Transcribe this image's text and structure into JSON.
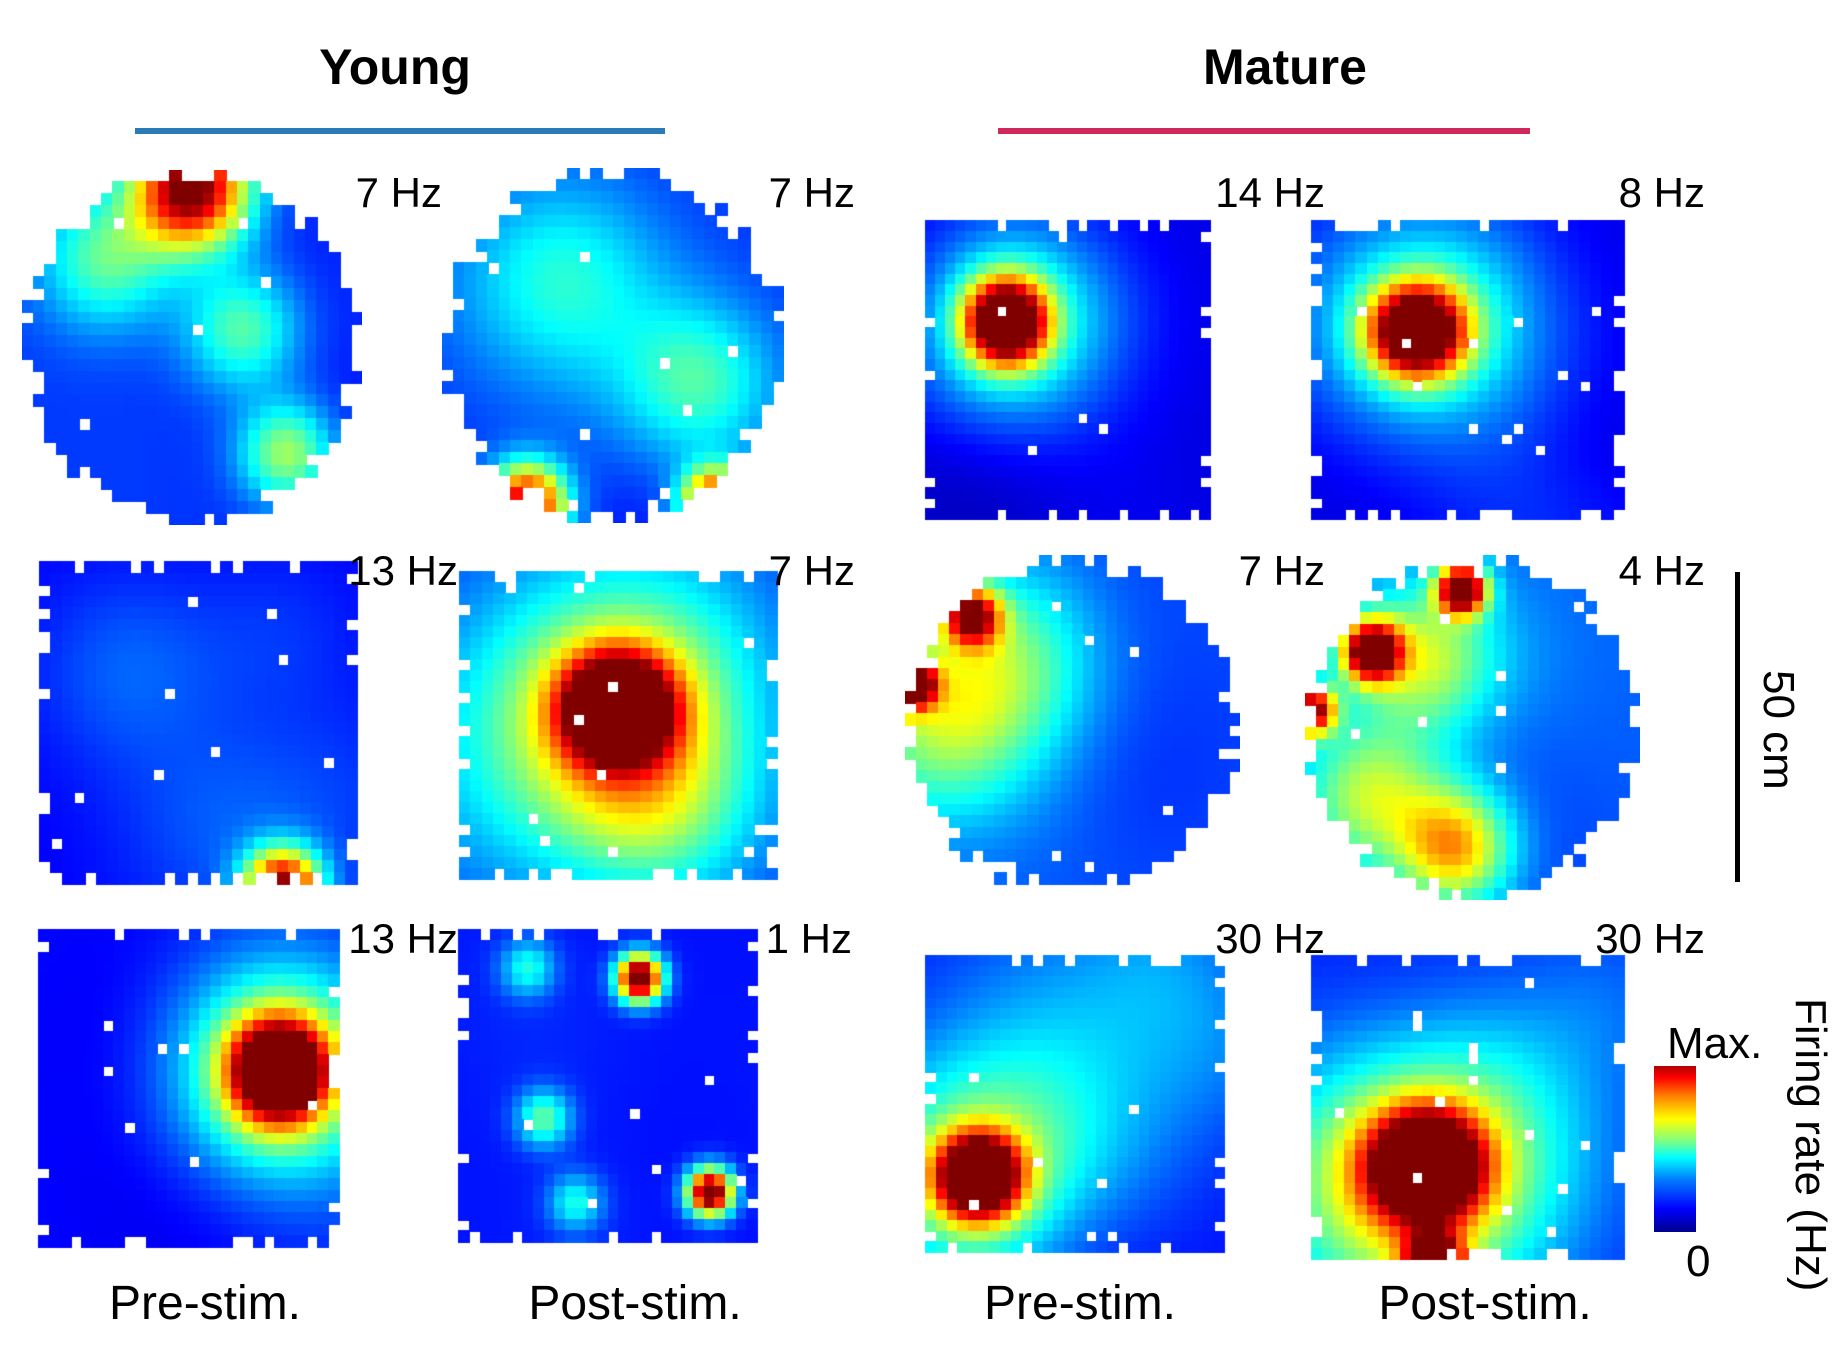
{
  "chart_data": {
    "type": "heatmap",
    "groups": [
      {
        "title": "Young",
        "color": "#1f77b4"
      },
      {
        "title": "Mature",
        "color": "#d62660"
      }
    ],
    "column_labels": [
      "Pre-stim.",
      "Post-stim.",
      "Pre-stim.",
      "Post-stim."
    ],
    "peak_rates": [
      [
        "7 Hz",
        "7 Hz",
        "14 Hz",
        "8 Hz"
      ],
      [
        "13 Hz",
        "7 Hz",
        "7 Hz",
        "4 Hz"
      ],
      [
        "13 Hz",
        "1 Hz",
        "30 Hz",
        "30 Hz"
      ]
    ],
    "scale_bar": "50 cm",
    "colorbar": {
      "max_label": "Max.",
      "min_label": "0",
      "axis_label": "Firing rate (Hz)",
      "colormap": "jet"
    }
  }
}
